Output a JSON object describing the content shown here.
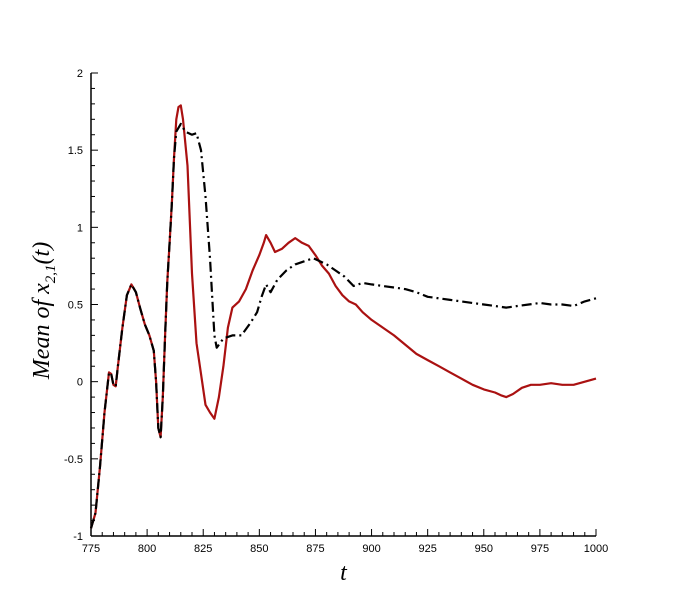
{
  "chart_data": {
    "type": "line",
    "title": "",
    "xlabel": "t",
    "ylabel": "Mean of x",
    "ylabel_sub": "2,1",
    "ylabel_suffix": "(t)",
    "xlim": [
      775,
      1000
    ],
    "ylim": [
      -1,
      2
    ],
    "x_ticks": [
      775,
      800,
      825,
      850,
      875,
      900,
      925,
      950,
      975,
      1000
    ],
    "x_tick_labels": [
      "775",
      "800",
      "825",
      "850",
      "875",
      "900",
      "925",
      "950",
      "975",
      "1000"
    ],
    "y_ticks": [
      -1,
      -0.5,
      0,
      0.5,
      1,
      1.5,
      2
    ],
    "y_tick_labels": [
      "-1",
      "-0.5",
      "0",
      "0.5",
      "1",
      "1.5",
      "2"
    ],
    "grid": false,
    "legend": "none",
    "series": [
      {
        "color": "#aa1111",
        "style": "solid",
        "points": [
          [
            775,
            -0.95
          ],
          [
            777,
            -0.85
          ],
          [
            779,
            -0.55
          ],
          [
            781,
            -0.2
          ],
          [
            783,
            0.06
          ],
          [
            784,
            0.05
          ],
          [
            785,
            -0.02
          ],
          [
            786,
            -0.03
          ],
          [
            787,
            0.1
          ],
          [
            789,
            0.35
          ],
          [
            791,
            0.56
          ],
          [
            793,
            0.63
          ],
          [
            795,
            0.58
          ],
          [
            797,
            0.47
          ],
          [
            799,
            0.37
          ],
          [
            801,
            0.3
          ],
          [
            803,
            0.2
          ],
          [
            804,
            0.0
          ],
          [
            805,
            -0.3
          ],
          [
            806,
            -0.36
          ],
          [
            807,
            -0.1
          ],
          [
            808,
            0.3
          ],
          [
            809,
            0.65
          ],
          [
            810,
            0.9
          ],
          [
            811,
            1.15
          ],
          [
            812,
            1.45
          ],
          [
            813,
            1.7
          ],
          [
            814,
            1.78
          ],
          [
            815,
            1.79
          ],
          [
            816,
            1.7
          ],
          [
            818,
            1.4
          ],
          [
            820,
            0.7
          ],
          [
            822,
            0.25
          ],
          [
            824,
            0.05
          ],
          [
            826,
            -0.15
          ],
          [
            828,
            -0.2
          ],
          [
            830,
            -0.24
          ],
          [
            832,
            -0.1
          ],
          [
            834,
            0.1
          ],
          [
            836,
            0.35
          ],
          [
            838,
            0.48
          ],
          [
            841,
            0.52
          ],
          [
            844,
            0.6
          ],
          [
            847,
            0.72
          ],
          [
            850,
            0.82
          ],
          [
            852,
            0.9
          ],
          [
            853,
            0.95
          ],
          [
            855,
            0.9
          ],
          [
            857,
            0.84
          ],
          [
            860,
            0.86
          ],
          [
            863,
            0.9
          ],
          [
            866,
            0.93
          ],
          [
            869,
            0.9
          ],
          [
            872,
            0.88
          ],
          [
            875,
            0.82
          ],
          [
            878,
            0.75
          ],
          [
            881,
            0.7
          ],
          [
            884,
            0.62
          ],
          [
            887,
            0.56
          ],
          [
            890,
            0.52
          ],
          [
            893,
            0.5
          ],
          [
            896,
            0.45
          ],
          [
            900,
            0.4
          ],
          [
            905,
            0.35
          ],
          [
            910,
            0.3
          ],
          [
            915,
            0.24
          ],
          [
            920,
            0.18
          ],
          [
            925,
            0.14
          ],
          [
            930,
            0.1
          ],
          [
            935,
            0.06
          ],
          [
            940,
            0.02
          ],
          [
            945,
            -0.02
          ],
          [
            950,
            -0.05
          ],
          [
            955,
            -0.07
          ],
          [
            958,
            -0.09
          ],
          [
            960,
            -0.1
          ],
          [
            963,
            -0.08
          ],
          [
            967,
            -0.04
          ],
          [
            971,
            -0.02
          ],
          [
            975,
            -0.02
          ],
          [
            980,
            -0.01
          ],
          [
            985,
            -0.02
          ],
          [
            990,
            -0.02
          ],
          [
            995,
            0.0
          ],
          [
            1000,
            0.02
          ]
        ]
      },
      {
        "color": "#000000",
        "style": "dash-dot",
        "points": [
          [
            775,
            -0.95
          ],
          [
            777,
            -0.85
          ],
          [
            779,
            -0.55
          ],
          [
            781,
            -0.2
          ],
          [
            783,
            0.06
          ],
          [
            784,
            0.05
          ],
          [
            785,
            -0.02
          ],
          [
            786,
            -0.03
          ],
          [
            787,
            0.1
          ],
          [
            789,
            0.35
          ],
          [
            791,
            0.56
          ],
          [
            793,
            0.63
          ],
          [
            795,
            0.58
          ],
          [
            797,
            0.47
          ],
          [
            799,
            0.37
          ],
          [
            801,
            0.3
          ],
          [
            803,
            0.2
          ],
          [
            804,
            0.0
          ],
          [
            805,
            -0.3
          ],
          [
            806,
            -0.36
          ],
          [
            807,
            -0.1
          ],
          [
            808,
            0.3
          ],
          [
            809,
            0.65
          ],
          [
            810,
            0.9
          ],
          [
            811,
            1.15
          ],
          [
            812,
            1.45
          ],
          [
            813,
            1.62
          ],
          [
            815,
            1.67
          ],
          [
            817,
            1.62
          ],
          [
            820,
            1.6
          ],
          [
            822,
            1.61
          ],
          [
            824,
            1.5
          ],
          [
            826,
            1.2
          ],
          [
            828,
            0.8
          ],
          [
            830,
            0.3
          ],
          [
            831,
            0.22
          ],
          [
            834,
            0.28
          ],
          [
            838,
            0.3
          ],
          [
            842,
            0.3
          ],
          [
            846,
            0.38
          ],
          [
            849,
            0.45
          ],
          [
            851,
            0.55
          ],
          [
            853,
            0.63
          ],
          [
            855,
            0.58
          ],
          [
            858,
            0.66
          ],
          [
            862,
            0.72
          ],
          [
            866,
            0.76
          ],
          [
            870,
            0.78
          ],
          [
            874,
            0.8
          ],
          [
            877,
            0.78
          ],
          [
            880,
            0.76
          ],
          [
            884,
            0.72
          ],
          [
            888,
            0.68
          ],
          [
            892,
            0.62
          ],
          [
            896,
            0.64
          ],
          [
            900,
            0.63
          ],
          [
            905,
            0.62
          ],
          [
            910,
            0.61
          ],
          [
            915,
            0.6
          ],
          [
            920,
            0.58
          ],
          [
            925,
            0.55
          ],
          [
            930,
            0.54
          ],
          [
            935,
            0.53
          ],
          [
            940,
            0.52
          ],
          [
            945,
            0.51
          ],
          [
            950,
            0.5
          ],
          [
            955,
            0.49
          ],
          [
            960,
            0.48
          ],
          [
            965,
            0.49
          ],
          [
            970,
            0.5
          ],
          [
            975,
            0.51
          ],
          [
            980,
            0.5
          ],
          [
            985,
            0.5
          ],
          [
            990,
            0.49
          ],
          [
            995,
            0.52
          ],
          [
            1000,
            0.54
          ]
        ]
      }
    ]
  }
}
